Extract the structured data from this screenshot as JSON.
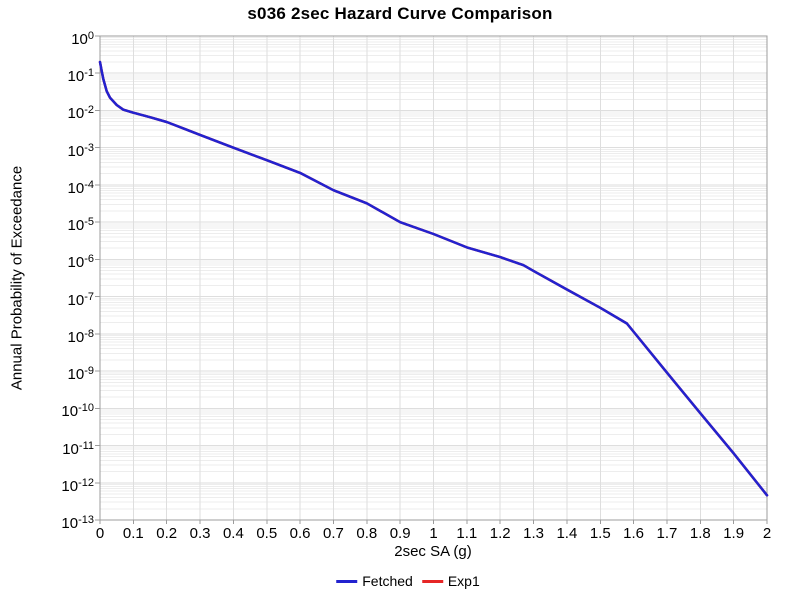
{
  "title": "s036 2sec Hazard Curve Comparison",
  "axes": {
    "x_label": "2sec SA (g)",
    "y_label": "Annual Probability of Exceedance"
  },
  "legend": {
    "items": [
      {
        "label": "Fetched",
        "color": "#2222cf"
      },
      {
        "label": "Exp1",
        "color": "#e62626"
      }
    ]
  },
  "chart_data": {
    "type": "line",
    "title": "s036 2sec Hazard Curve Comparison",
    "xlabel": "2sec SA (g)",
    "ylabel": "Annual Probability of Exceedance",
    "x_scale": "linear",
    "y_scale": "log",
    "xlim": [
      0,
      2
    ],
    "ylim": [
      1e-13,
      1
    ],
    "x_ticks": [
      0,
      0.1,
      0.2,
      0.3,
      0.4,
      0.5,
      0.6,
      0.7,
      0.8,
      0.9,
      1,
      1.1,
      1.2,
      1.3,
      1.4,
      1.5,
      1.6,
      1.7,
      1.8,
      1.9,
      2
    ],
    "y_tick_exponents": [
      0,
      -1,
      -2,
      -3,
      -4,
      -5,
      -6,
      -7,
      -8,
      -9,
      -10,
      -11,
      -12,
      -13
    ],
    "grid": true,
    "grid_major_color": "#dedede",
    "grid_minor_color": "#ededed",
    "frame_color": "#9c9c9c",
    "legend_position": "bottom-center",
    "series": [
      {
        "name": "Fetched",
        "color": "#2222cf",
        "points": [
          [
            0,
            0.2
          ],
          [
            0.005,
            0.115
          ],
          [
            0.01,
            0.07
          ],
          [
            0.02,
            0.033
          ],
          [
            0.03,
            0.022
          ],
          [
            0.05,
            0.014
          ],
          [
            0.07,
            0.0105
          ],
          [
            0.1,
            0.0087
          ],
          [
            0.15,
            0.0066
          ],
          [
            0.2,
            0.0049
          ],
          [
            0.25,
            0.0033
          ],
          [
            0.3,
            0.0022
          ],
          [
            0.4,
            0.001
          ],
          [
            0.5,
            0.00046
          ],
          [
            0.6,
            0.00021
          ],
          [
            0.7,
            7.2e-05
          ],
          [
            0.8,
            3.2e-05
          ],
          [
            0.9,
            1e-05
          ],
          [
            1.0,
            4.8e-06
          ],
          [
            1.1,
            2.1e-06
          ],
          [
            1.2,
            1.15e-06
          ],
          [
            1.27,
            7e-07
          ],
          [
            1.3,
            4.9e-07
          ],
          [
            1.4,
            1.55e-07
          ],
          [
            1.5,
            5e-08
          ],
          [
            1.58,
            1.9e-08
          ],
          [
            1.7,
            9.1e-10
          ],
          [
            1.8,
            7.4e-11
          ],
          [
            1.9,
            6.2e-12
          ],
          [
            2.0,
            4.6e-13
          ]
        ]
      },
      {
        "name": "Exp1",
        "color": "#e62626",
        "points": [
          [
            0,
            0.2
          ],
          [
            0.005,
            0.115
          ],
          [
            0.01,
            0.07
          ],
          [
            0.02,
            0.033
          ],
          [
            0.03,
            0.022
          ],
          [
            0.05,
            0.014
          ],
          [
            0.07,
            0.0105
          ],
          [
            0.1,
            0.0087
          ],
          [
            0.15,
            0.0066
          ],
          [
            0.2,
            0.0049
          ],
          [
            0.25,
            0.0033
          ],
          [
            0.3,
            0.0022
          ],
          [
            0.4,
            0.001
          ],
          [
            0.5,
            0.00046
          ],
          [
            0.6,
            0.00021
          ],
          [
            0.7,
            7.2e-05
          ],
          [
            0.8,
            3.2e-05
          ],
          [
            0.9,
            1e-05
          ],
          [
            1.0,
            4.8e-06
          ],
          [
            1.1,
            2.1e-06
          ],
          [
            1.2,
            1.15e-06
          ],
          [
            1.27,
            7e-07
          ],
          [
            1.3,
            4.9e-07
          ],
          [
            1.4,
            1.55e-07
          ],
          [
            1.5,
            5e-08
          ],
          [
            1.58,
            1.9e-08
          ],
          [
            1.7,
            9.1e-10
          ],
          [
            1.8,
            7.4e-11
          ],
          [
            1.9,
            6.2e-12
          ],
          [
            2.0,
            4.6e-13
          ]
        ]
      }
    ]
  }
}
